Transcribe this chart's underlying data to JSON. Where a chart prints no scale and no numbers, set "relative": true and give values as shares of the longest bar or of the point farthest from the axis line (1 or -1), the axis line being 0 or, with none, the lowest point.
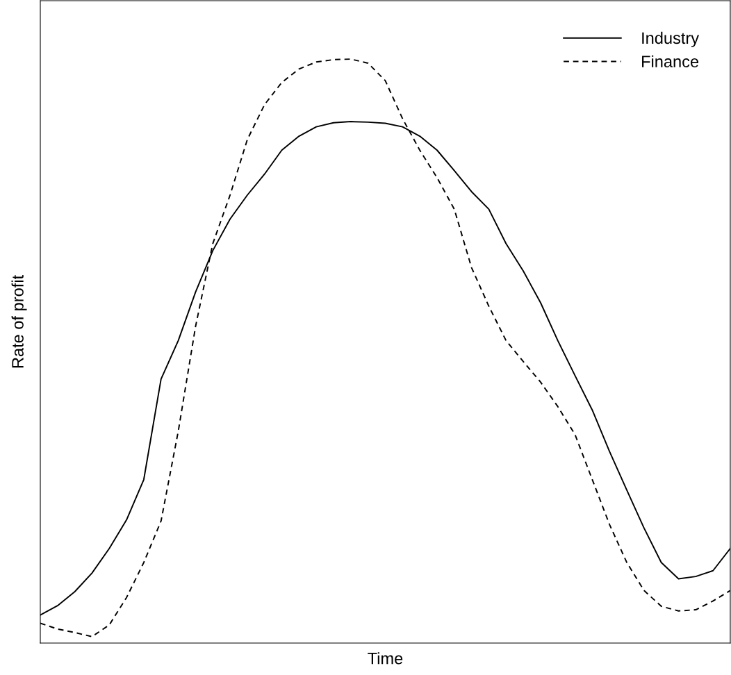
{
  "chart_data": {
    "type": "line",
    "relative": true,
    "xlabel": "Time",
    "ylabel": "Rate of profit",
    "legend": "top right",
    "grid": false,
    "marker": "none",
    "categories": [
      null,
      null,
      null,
      null,
      null,
      null,
      null,
      null,
      null,
      null,
      null,
      null,
      null,
      null,
      null,
      null,
      null,
      null,
      null,
      null,
      null,
      null,
      null,
      null,
      null,
      null,
      null,
      null,
      null,
      null,
      null,
      null,
      null,
      null,
      null,
      null,
      null,
      null,
      null,
      null,
      null
    ],
    "series": [
      {
        "name": "Industry",
        "color": "#000000",
        "line_style": "solid",
        "values": [
          0.048,
          0.064,
          0.088,
          0.12,
          0.162,
          0.211,
          0.28,
          0.452,
          0.518,
          0.601,
          0.672,
          0.726,
          0.767,
          0.803,
          0.844,
          0.868,
          0.884,
          0.891,
          0.893,
          0.892,
          0.89,
          0.884,
          0.868,
          0.844,
          0.809,
          0.773,
          0.743,
          0.684,
          0.637,
          0.583,
          0.518,
          0.458,
          0.399,
          0.328,
          0.262,
          0.197,
          0.138,
          0.11,
          0.114,
          0.124,
          0.162
        ]
      },
      {
        "name": "Finance",
        "color": "#000000",
        "line_style": "dashed",
        "values": [
          0.034,
          0.024,
          0.018,
          0.011,
          0.031,
          0.078,
          0.138,
          0.209,
          0.363,
          0.542,
          0.684,
          0.767,
          0.862,
          0.922,
          0.96,
          0.983,
          0.995,
          0.999,
          1,
          0.993,
          0.963,
          0.898,
          0.844,
          0.797,
          0.743,
          0.643,
          0.577,
          0.518,
          0.482,
          0.447,
          0.405,
          0.357,
          0.28,
          0.203,
          0.138,
          0.09,
          0.063,
          0.055,
          0.057,
          0.072,
          0.09
        ]
      }
    ]
  }
}
